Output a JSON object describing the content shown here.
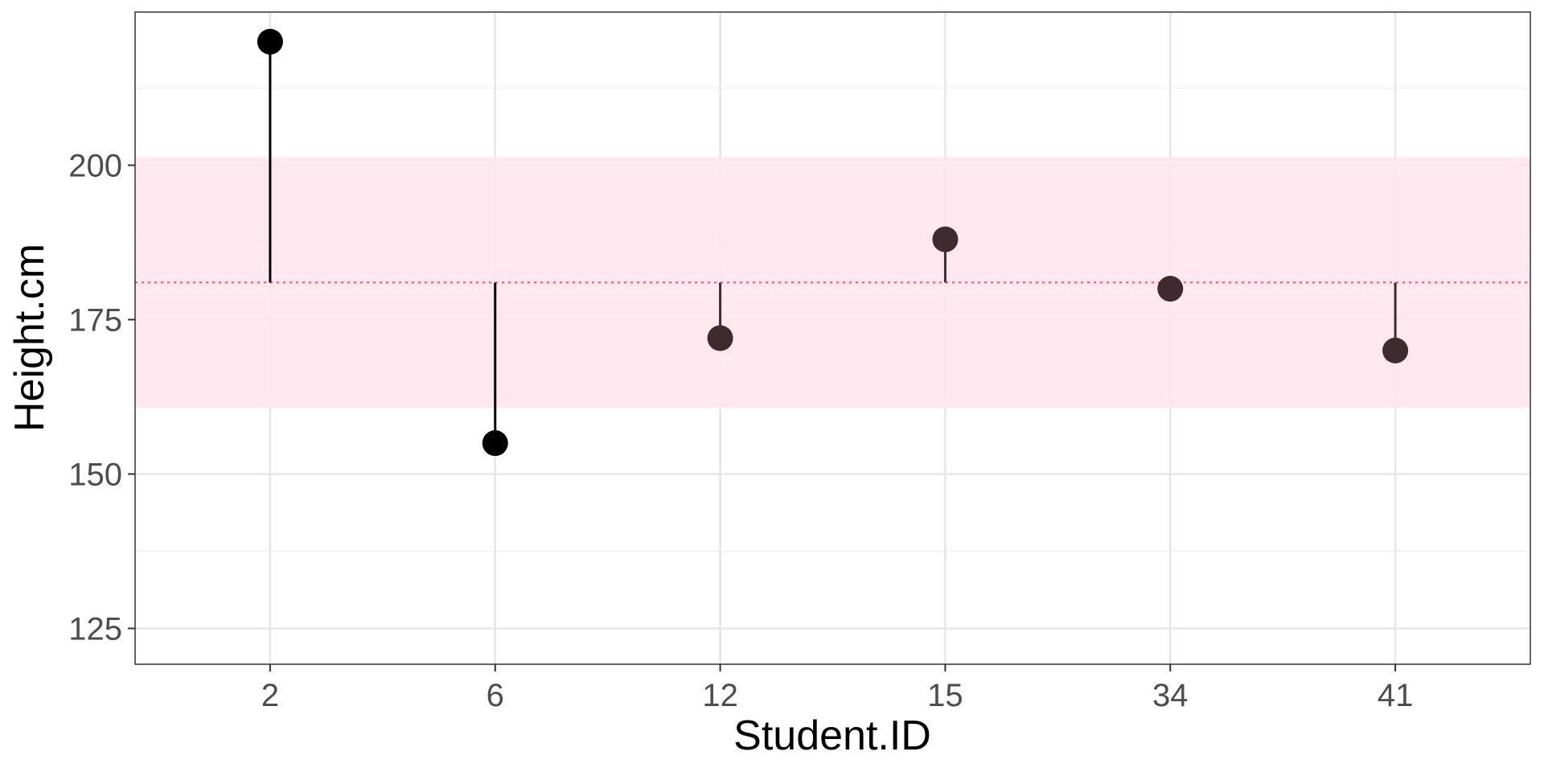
{
  "chart_data": {
    "type": "lollipop",
    "xlabel": "Student.ID",
    "ylabel": "Height.cm",
    "categories": [
      "2",
      "6",
      "12",
      "15",
      "34",
      "41"
    ],
    "values": [
      220,
      155,
      172,
      188,
      180,
      170
    ],
    "baseline": 181,
    "band": [
      160.7,
      201.3
    ],
    "ylim": [
      119.2,
      224.8
    ],
    "yticks": [
      125,
      150,
      175,
      200
    ],
    "grid": true,
    "colors": {
      "band": "#ffe4ec",
      "baseline": "#f0505a",
      "point_outside_band": "#000000",
      "point_inside_band": "#3f2a2f",
      "panel_border": "#333333",
      "grid_major": "#e6e6e6",
      "grid_minor": "#f0f0f0"
    }
  }
}
